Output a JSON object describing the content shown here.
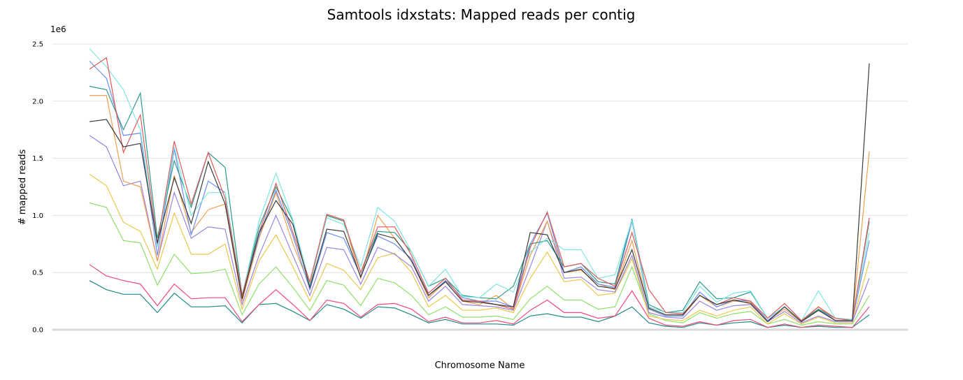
{
  "chart_data": {
    "type": "line",
    "title": "Samtools idxstats: Mapped reads per contig",
    "x_label": "Chromosome Name",
    "y_label": "# mapped reads",
    "y_offset_label": "1e6",
    "grid": true,
    "categories": [
      null,
      null,
      null,
      null,
      null,
      null,
      null,
      null,
      null,
      null,
      null,
      null,
      null,
      null,
      null,
      null,
      null,
      null,
      null,
      null,
      null,
      null,
      null,
      null,
      null,
      null,
      null,
      null,
      null,
      null,
      null,
      null,
      null,
      null,
      null,
      null,
      null,
      null,
      null,
      null,
      null,
      null,
      null,
      null,
      null,
      null,
      null
    ],
    "ylim": [
      0,
      2.5
    ],
    "yticks": [
      {
        "value": 0,
        "label": "0.0"
      },
      0.5,
      {
        "value": 1,
        "label": "1.0"
      },
      1.5,
      {
        "value": 2,
        "label": "2.0"
      },
      2.5
    ],
    "series": [
      {
        "color": "#1f8a8a",
        "values": [
          0.43,
          0.35,
          0.31,
          0.31,
          0.15,
          0.32,
          0.2,
          0.2,
          0.21,
          0.06,
          0.22,
          0.23,
          0.16,
          0.08,
          0.22,
          0.18,
          0.1,
          0.2,
          0.19,
          0.13,
          0.06,
          0.09,
          0.05,
          0.05,
          0.05,
          0.04,
          0.12,
          0.14,
          0.11,
          0.11,
          0.07,
          0.12,
          0.2,
          0.06,
          0.03,
          0.02,
          0.06,
          0.04,
          0.06,
          0.07,
          0.02,
          0.04,
          0.02,
          0.03,
          0.02,
          0.02,
          0.13
        ]
      },
      {
        "color": "#ee4a78",
        "values": [
          0.57,
          0.47,
          0.43,
          0.4,
          0.21,
          0.4,
          0.27,
          0.28,
          0.28,
          0.07,
          0.22,
          0.35,
          0.22,
          0.08,
          0.26,
          0.23,
          0.11,
          0.22,
          0.23,
          0.18,
          0.07,
          0.11,
          0.06,
          0.06,
          0.08,
          0.05,
          0.17,
          0.26,
          0.15,
          0.15,
          0.1,
          0.12,
          0.34,
          0.1,
          0.04,
          0.03,
          0.07,
          0.04,
          0.08,
          0.09,
          0.02,
          0.05,
          0.02,
          0.04,
          0.03,
          0.02,
          0.2
        ]
      },
      {
        "color": "#8ee06a",
        "values": [
          1.11,
          1.07,
          0.78,
          0.76,
          0.39,
          0.66,
          0.49,
          0.5,
          0.53,
          0.13,
          0.4,
          0.55,
          0.37,
          0.17,
          0.43,
          0.39,
          0.21,
          0.45,
          0.41,
          0.3,
          0.13,
          0.2,
          0.11,
          0.11,
          0.12,
          0.09,
          0.27,
          0.38,
          0.26,
          0.26,
          0.18,
          0.2,
          0.55,
          0.14,
          0.08,
          0.06,
          0.15,
          0.1,
          0.14,
          0.16,
          0.05,
          0.09,
          0.04,
          0.07,
          0.05,
          0.05,
          0.3
        ]
      },
      {
        "color": "#e8c84a",
        "values": [
          1.36,
          1.26,
          0.94,
          0.86,
          0.53,
          1.02,
          0.66,
          0.66,
          0.75,
          0.18,
          0.6,
          0.83,
          0.55,
          0.25,
          0.58,
          0.52,
          0.35,
          0.63,
          0.67,
          0.5,
          0.2,
          0.3,
          0.17,
          0.17,
          0.19,
          0.15,
          0.45,
          0.68,
          0.42,
          0.44,
          0.3,
          0.32,
          0.62,
          0.12,
          0.09,
          0.08,
          0.17,
          0.12,
          0.17,
          0.2,
          0.05,
          0.14,
          0.05,
          0.11,
          0.06,
          0.06,
          0.6
        ]
      },
      {
        "color": "#9b84e0",
        "values": [
          1.7,
          1.6,
          1.26,
          1.3,
          0.6,
          1.2,
          0.8,
          0.9,
          0.88,
          0.22,
          0.65,
          1.0,
          0.65,
          0.3,
          0.72,
          0.7,
          0.4,
          0.72,
          0.66,
          0.55,
          0.25,
          0.38,
          0.22,
          0.21,
          0.2,
          0.17,
          0.55,
          0.95,
          0.45,
          0.46,
          0.35,
          0.33,
          0.65,
          0.15,
          0.11,
          0.1,
          0.25,
          0.17,
          0.21,
          0.22,
          0.07,
          0.16,
          0.06,
          0.12,
          0.07,
          0.07,
          0.45
        ]
      },
      {
        "color": "#f0a050",
        "values": [
          2.05,
          2.05,
          1.3,
          1.25,
          0.6,
          1.35,
          0.85,
          1.05,
          1.1,
          0.25,
          0.8,
          1.2,
          0.75,
          0.38,
          1.0,
          0.95,
          0.45,
          1.0,
          0.8,
          0.6,
          0.28,
          0.42,
          0.25,
          0.22,
          0.3,
          0.18,
          0.65,
          0.95,
          0.5,
          0.52,
          0.4,
          0.35,
          0.78,
          0.18,
          0.12,
          0.12,
          0.3,
          0.2,
          0.25,
          0.24,
          0.08,
          0.18,
          0.07,
          0.2,
          0.08,
          0.08,
          1.56
        ]
      },
      {
        "color": "#6a8ff0",
        "values": [
          2.35,
          2.2,
          1.7,
          1.72,
          0.65,
          1.58,
          0.83,
          1.3,
          1.2,
          0.28,
          0.82,
          1.22,
          0.82,
          0.35,
          0.85,
          0.8,
          0.47,
          0.82,
          0.75,
          0.62,
          0.3,
          0.43,
          0.28,
          0.25,
          0.25,
          0.2,
          0.75,
          1.02,
          0.5,
          0.55,
          0.4,
          0.37,
          0.95,
          0.18,
          0.12,
          0.12,
          0.33,
          0.2,
          0.26,
          0.25,
          0.08,
          0.2,
          0.07,
          0.18,
          0.08,
          0.08,
          0.78
        ]
      },
      {
        "color": "#2a9a8a",
        "values": [
          2.13,
          2.1,
          1.75,
          2.07,
          0.8,
          1.48,
          1.07,
          1.55,
          1.42,
          0.3,
          0.9,
          1.25,
          0.95,
          0.4,
          1.0,
          0.95,
          0.5,
          0.86,
          0.85,
          0.68,
          0.38,
          0.45,
          0.3,
          0.28,
          0.27,
          0.38,
          0.75,
          0.78,
          0.55,
          0.58,
          0.42,
          0.4,
          0.97,
          0.22,
          0.15,
          0.17,
          0.42,
          0.27,
          0.28,
          0.33,
          0.1,
          0.2,
          0.08,
          0.18,
          0.1,
          0.09,
          0.95
        ]
      },
      {
        "color": "#80e6e0",
        "values": [
          2.46,
          2.3,
          2.1,
          1.75,
          0.72,
          1.6,
          1.0,
          1.2,
          1.2,
          0.3,
          0.95,
          1.37,
          0.96,
          0.4,
          0.98,
          0.92,
          0.55,
          1.07,
          0.95,
          0.68,
          0.38,
          0.53,
          0.29,
          0.28,
          0.4,
          0.33,
          0.68,
          0.8,
          0.7,
          0.7,
          0.45,
          0.48,
          0.96,
          0.2,
          0.15,
          0.15,
          0.38,
          0.24,
          0.32,
          0.34,
          0.1,
          0.2,
          0.08,
          0.34,
          0.1,
          0.09,
          0.85
        ]
      },
      {
        "color": "#e05a5a",
        "values": [
          2.28,
          2.38,
          1.55,
          1.88,
          0.75,
          1.65,
          1.1,
          1.55,
          1.15,
          0.3,
          0.85,
          1.28,
          0.85,
          0.42,
          1.01,
          0.96,
          0.5,
          0.9,
          0.9,
          0.65,
          0.32,
          0.45,
          0.26,
          0.25,
          0.22,
          0.18,
          0.72,
          1.03,
          0.55,
          0.58,
          0.45,
          0.38,
          0.85,
          0.35,
          0.15,
          0.14,
          0.3,
          0.22,
          0.28,
          0.25,
          0.1,
          0.23,
          0.08,
          0.2,
          0.1,
          0.08,
          0.98
        ]
      },
      {
        "color": "#3a3a3a",
        "values": [
          1.82,
          1.84,
          1.6,
          1.63,
          0.76,
          1.33,
          0.93,
          1.47,
          1.1,
          0.27,
          0.85,
          1.13,
          0.92,
          0.37,
          0.88,
          0.86,
          0.46,
          0.84,
          0.8,
          0.6,
          0.3,
          0.42,
          0.25,
          0.24,
          0.22,
          0.2,
          0.85,
          0.83,
          0.5,
          0.53,
          0.38,
          0.36,
          0.7,
          0.19,
          0.13,
          0.13,
          0.3,
          0.22,
          0.26,
          0.23,
          0.07,
          0.2,
          0.07,
          0.17,
          0.08,
          0.08,
          2.33
        ]
      }
    ]
  }
}
